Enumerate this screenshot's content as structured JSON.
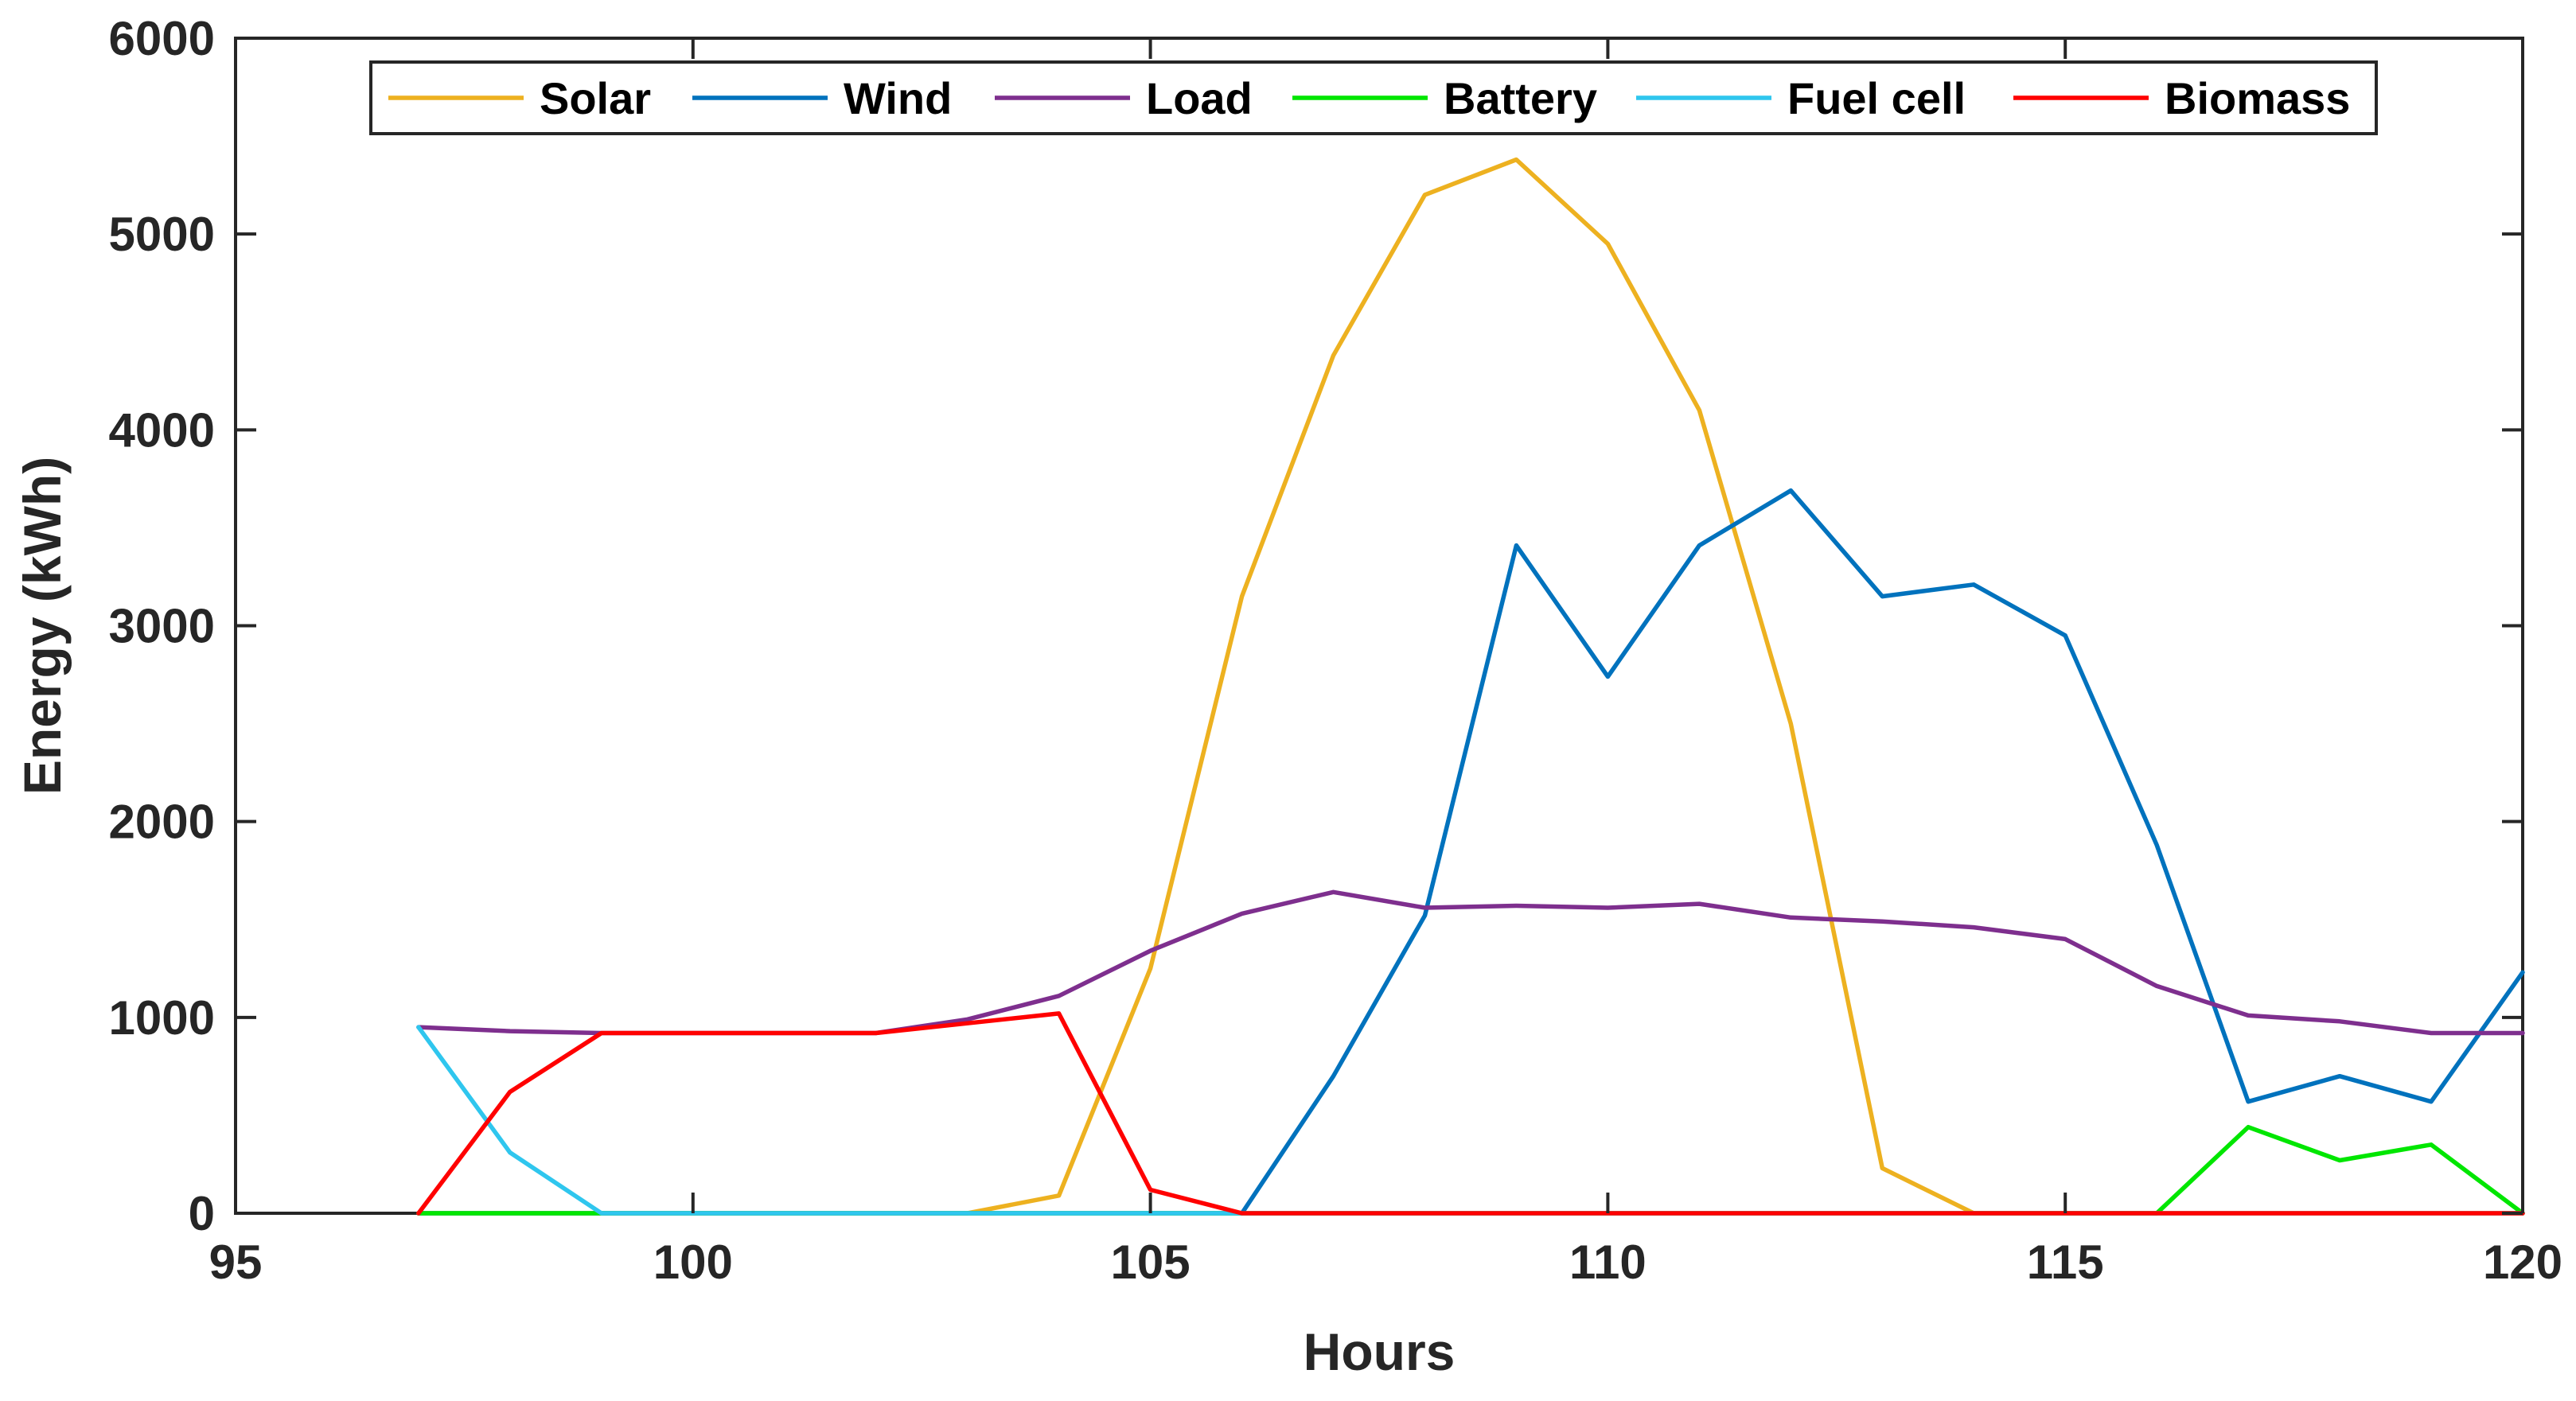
{
  "chart_data": {
    "type": "line",
    "title": "",
    "xlabel": "Hours",
    "ylabel": "Energy (kWh)",
    "xlim": [
      95,
      120
    ],
    "ylim": [
      0,
      6000
    ],
    "xticks": [
      "95",
      "100",
      "105",
      "110",
      "115",
      "120"
    ],
    "yticks": [
      "0",
      "1000",
      "2000",
      "3000",
      "4000",
      "5000",
      "6000"
    ],
    "grid": false,
    "legend_position": "top",
    "x": [
      97,
      98,
      99,
      100,
      101,
      102,
      103,
      104,
      105,
      106,
      107,
      108,
      109,
      110,
      111,
      112,
      113,
      114,
      115,
      116,
      117,
      118,
      119,
      120
    ],
    "series": [
      {
        "name": "Solar",
        "color": "#EDB120",
        "values": [
          0,
          0,
          0,
          0,
          0,
          0,
          0,
          90,
          1250,
          3150,
          4380,
          5200,
          5380,
          4950,
          4100,
          2500,
          230,
          0,
          0,
          0,
          0,
          0,
          0,
          0
        ]
      },
      {
        "name": "Wind",
        "color": "#0072BD",
        "values": [
          0,
          0,
          0,
          0,
          0,
          0,
          0,
          0,
          0,
          0,
          700,
          1520,
          3410,
          2740,
          3410,
          3690,
          3150,
          3210,
          2950,
          1880,
          570,
          700,
          570,
          1230
        ]
      },
      {
        "name": "Load",
        "color": "#7E2F8E",
        "values": [
          950,
          930,
          920,
          920,
          920,
          920,
          990,
          1110,
          1340,
          1530,
          1640,
          1560,
          1570,
          1560,
          1580,
          1510,
          1490,
          1460,
          1400,
          1160,
          1010,
          980,
          920,
          920
        ]
      },
      {
        "name": "Battery",
        "color": "#00E600",
        "values": [
          0,
          0,
          0,
          0,
          0,
          0,
          0,
          0,
          0,
          0,
          0,
          0,
          0,
          0,
          0,
          0,
          0,
          0,
          0,
          0,
          440,
          270,
          350,
          0
        ]
      },
      {
        "name": "Fuel cell",
        "color": "#2FC6EE",
        "values": [
          950,
          310,
          0,
          0,
          0,
          0,
          0,
          0,
          0,
          0,
          0,
          0,
          0,
          0,
          0,
          0,
          0,
          0,
          0,
          0,
          0,
          0,
          0,
          0
        ]
      },
      {
        "name": "Biomass",
        "color": "#FF0000",
        "values": [
          0,
          620,
          920,
          920,
          920,
          920,
          970,
          1020,
          120,
          0,
          0,
          0,
          0,
          0,
          0,
          0,
          0,
          0,
          0,
          0,
          0,
          0,
          0,
          0
        ]
      }
    ]
  }
}
